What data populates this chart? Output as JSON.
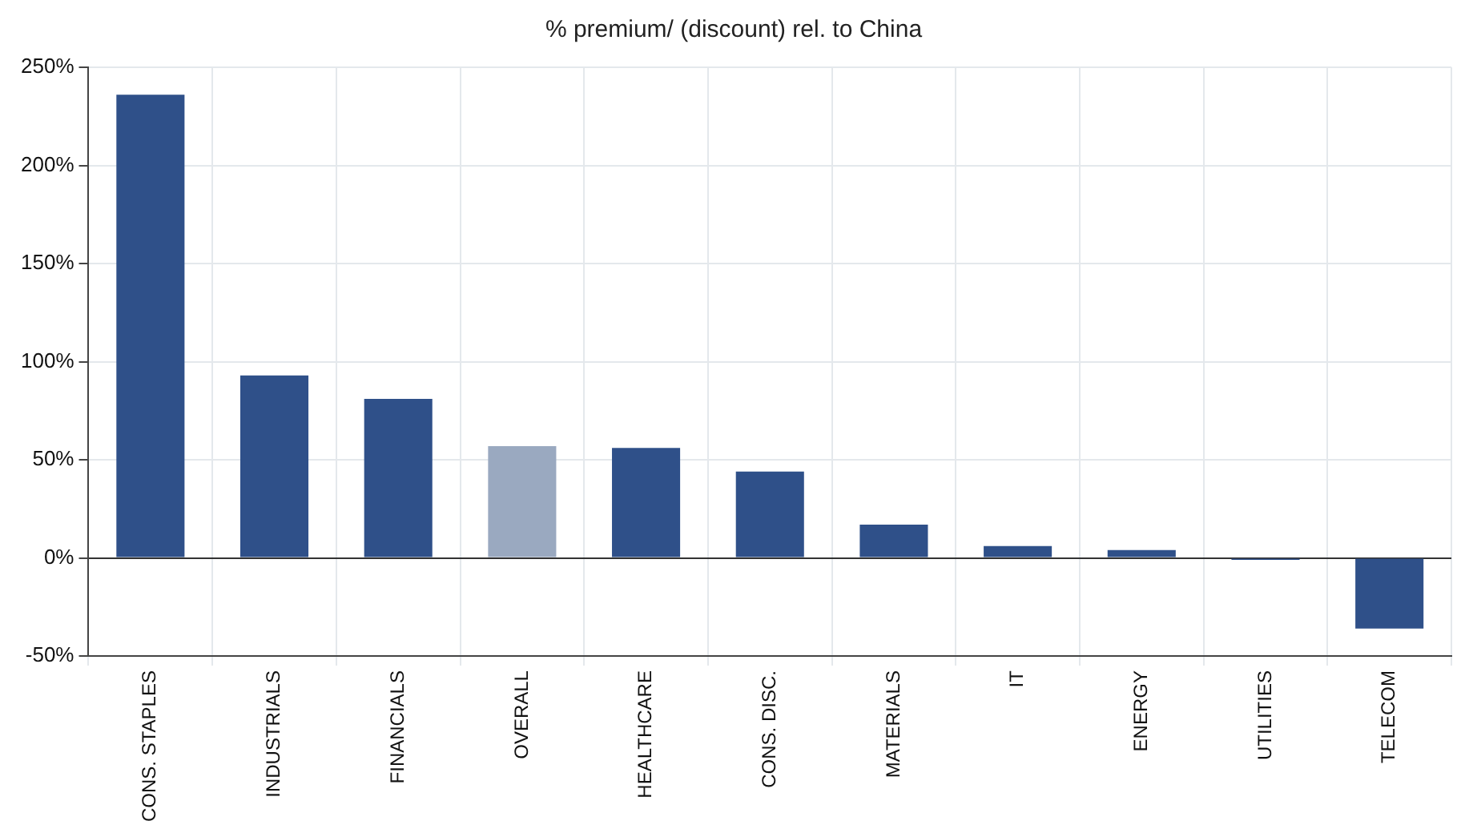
{
  "chart_data": {
    "type": "bar",
    "title": "% premium/ (discount) rel. to China",
    "categories": [
      "CONS. STAPLES",
      "INDUSTRIALS",
      "FINANCIALS",
      "OVERALL",
      "HEALTHCARE",
      "CONS. DISC.",
      "MATERIALS",
      "IT",
      "ENERGY",
      "UTILITIES",
      "TELECOM"
    ],
    "values": [
      236,
      93,
      81,
      57,
      56,
      44,
      17,
      6,
      4,
      -1,
      -36
    ],
    "colors": [
      "#2f5089",
      "#2f5089",
      "#2f5089",
      "#9aa9c0",
      "#2f5089",
      "#2f5089",
      "#2f5089",
      "#2f5089",
      "#2f5089",
      "#2f5089",
      "#2f5089"
    ],
    "ylim": [
      -50,
      250
    ],
    "yticks": [
      {
        "value": -50,
        "label": "-50%"
      },
      {
        "value": 0,
        "label": "0%"
      },
      {
        "value": 50,
        "label": "50%"
      },
      {
        "value": 100,
        "label": "100%"
      },
      {
        "value": 150,
        "label": "150%"
      },
      {
        "value": 200,
        "label": "200%"
      },
      {
        "value": 250,
        "label": "250%"
      }
    ],
    "grid": true,
    "legend": false
  }
}
